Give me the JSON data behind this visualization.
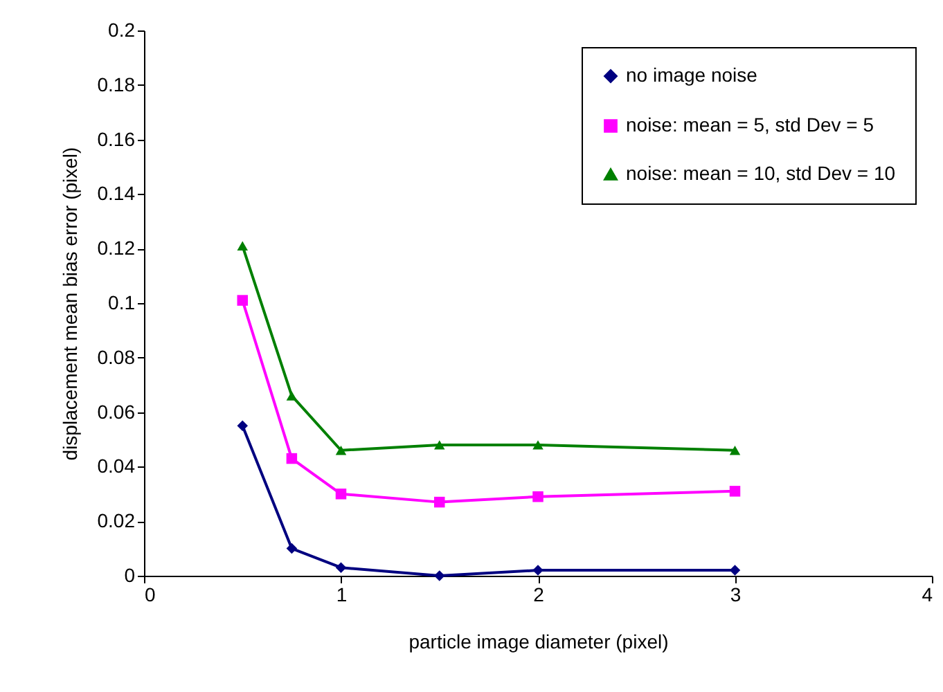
{
  "chart_data": {
    "type": "line",
    "xlabel": "particle image diameter (pixel)",
    "ylabel": "displacement mean bias error (pixel)",
    "x": [
      0.5,
      0.75,
      1,
      1.5,
      2,
      3
    ],
    "series": [
      {
        "name": "no image noise",
        "color": "#000080",
        "marker": "diamond",
        "values": [
          0.055,
          0.01,
          0.003,
          0,
          0.002,
          0.002
        ]
      },
      {
        "name": "noise: mean = 5, std Dev = 5",
        "color": "#ff00ff",
        "marker": "square",
        "values": [
          0.101,
          0.043,
          0.03,
          0.027,
          0.029,
          0.031
        ]
      },
      {
        "name": "noise: mean = 10, std Dev = 10",
        "color": "#008000",
        "marker": "triangle",
        "values": [
          0.121,
          0.066,
          0.046,
          0.048,
          0.048,
          0.046
        ]
      }
    ],
    "xlim": [
      0,
      4
    ],
    "xticks": [
      0,
      1,
      2,
      3,
      4
    ],
    "ylim": [
      0,
      0.2
    ],
    "yticks": [
      0,
      0.02,
      0.04,
      0.06,
      0.08,
      0.1,
      0.12,
      0.14,
      0.16,
      0.18,
      0.2
    ],
    "grid": false,
    "legend": "top right"
  }
}
